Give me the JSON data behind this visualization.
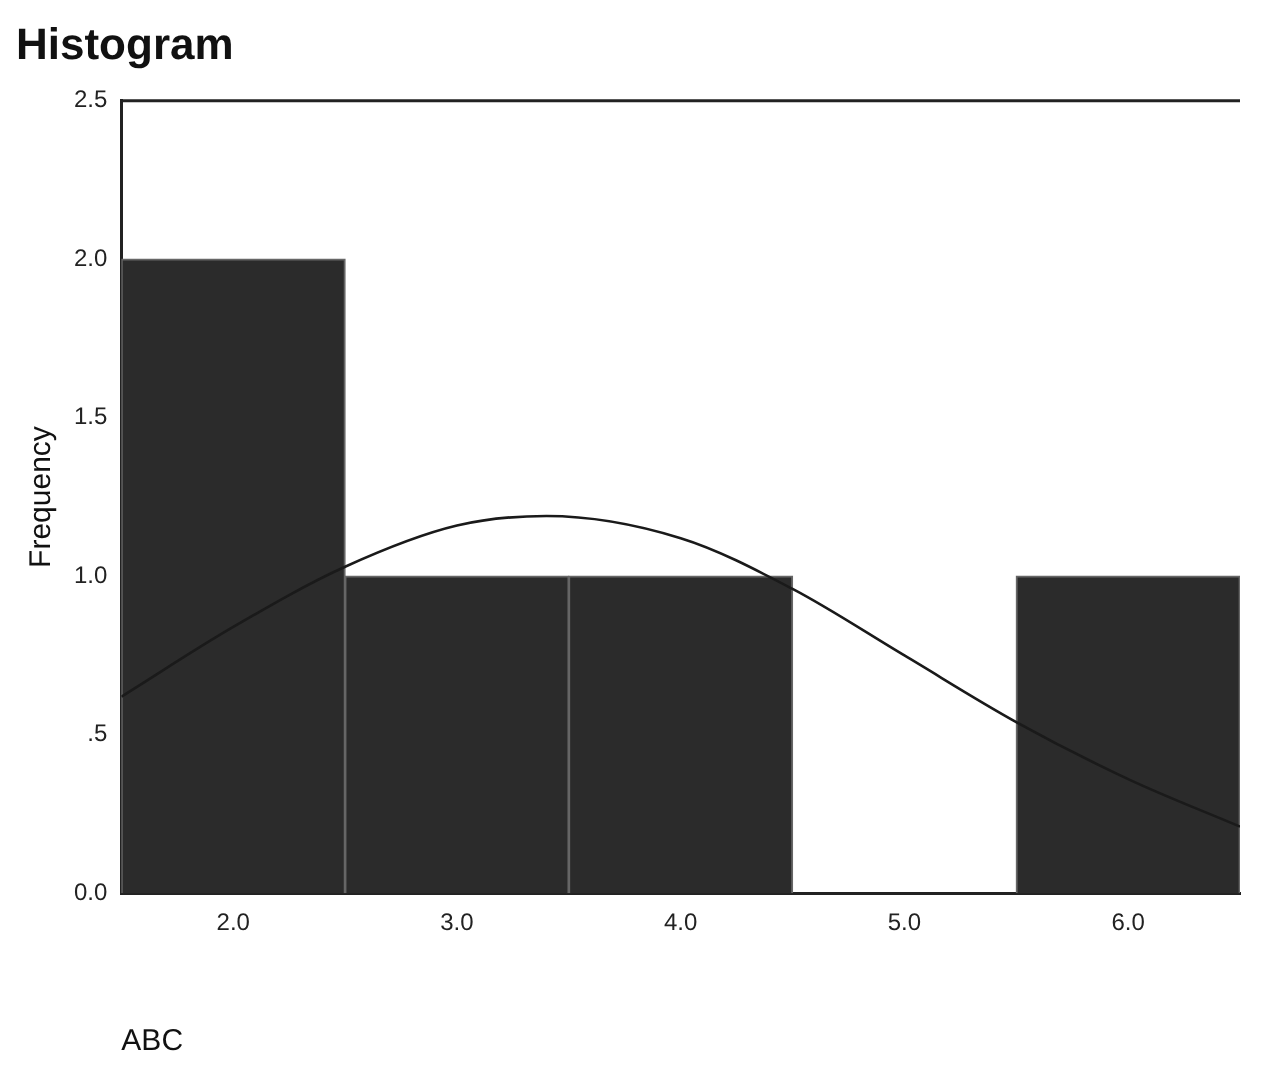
{
  "chart_data": {
    "type": "histogram",
    "title": "Histogram",
    "xlabel": "ABC",
    "ylabel": "Frequency",
    "bins": [
      1.5,
      2.5,
      3.5,
      4.5,
      5.5,
      6.5
    ],
    "values": [
      2,
      1,
      1,
      0,
      1
    ],
    "color": "#2b2b2b",
    "series": [
      {
        "type": "line",
        "color": "#1a1a1a",
        "x": [
          1.5,
          2,
          2.5,
          3,
          3.4,
          4,
          4.5,
          5,
          5.5,
          6,
          6.5
        ],
        "values": [
          0.62,
          0.84,
          1.03,
          1.16,
          1.19,
          1.12,
          0.96,
          0.75,
          0.54,
          0.36,
          0.21
        ]
      }
    ],
    "xlim": [
      1.5,
      6.5
    ],
    "xticks": [
      {
        "value": 2,
        "label": "2.0"
      },
      {
        "value": 3,
        "label": "3.0"
      },
      {
        "value": 4,
        "label": "4.0"
      },
      {
        "value": 5,
        "label": "5.0"
      },
      {
        "value": 6,
        "label": "6.0"
      }
    ],
    "ylim": [
      0,
      2.5
    ],
    "yticks": [
      {
        "value": 0,
        "label": "0.0"
      },
      {
        "value": 0.5,
        "label": ".5"
      },
      {
        "value": 1,
        "label": "1.0"
      },
      {
        "value": 1.5,
        "label": "1.5"
      },
      {
        "value": 2,
        "label": "2.0"
      },
      {
        "value": 2.5,
        "label": "2.5"
      }
    ],
    "grid": false,
    "legend": false,
    "marker": "none"
  }
}
